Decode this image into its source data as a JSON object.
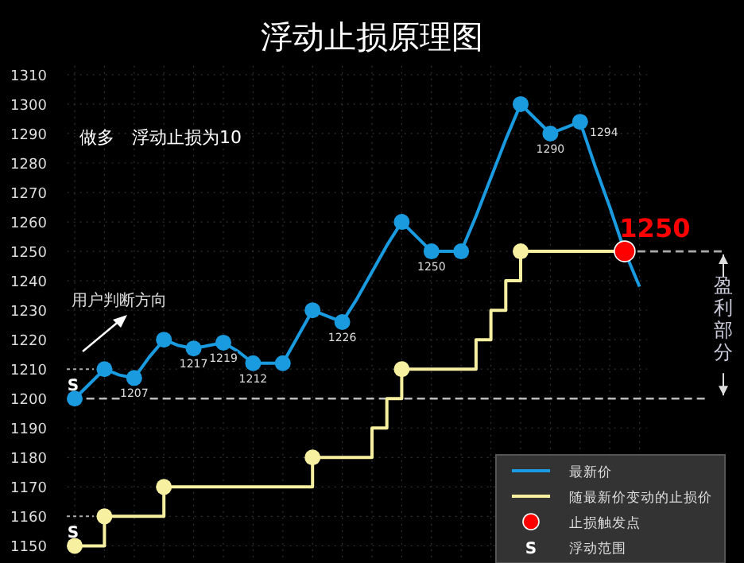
{
  "chart_data": {
    "type": "line",
    "title": "浮动止损原理图",
    "categories": [
      null,
      null,
      null,
      null,
      null,
      null,
      null,
      null,
      null,
      null,
      null,
      null,
      null,
      null,
      null,
      null,
      null,
      null,
      null,
      null,
      null,
      null,
      null,
      null,
      null,
      null,
      null,
      null,
      null,
      null,
      null,
      null,
      null,
      null,
      null,
      null,
      null,
      null,
      null
    ],
    "ylim": [
      1146,
      1313
    ],
    "yticks": [
      1150,
      1160,
      1170,
      1180,
      1190,
      1200,
      1210,
      1220,
      1230,
      1240,
      1250,
      1260,
      1270,
      1280,
      1290,
      1300,
      1310
    ],
    "tick_labels": "y",
    "grid": true,
    "legend": "bottom right",
    "series": [
      {
        "name": "最新价",
        "color": "#1a9be0",
        "values": [
          1200,
          1205,
          1210,
          1208,
          1207,
          1214,
          1220,
          1218,
          1217,
          1218,
          1219,
          1216,
          1212,
          1212,
          1212,
          1221,
          1230,
          1228,
          1226,
          1234,
          1243,
          1252,
          1260,
          1255,
          1250,
          1250,
          1250,
          1262,
          1275,
          1288,
          1300,
          1295,
          1290,
          1292,
          1294,
          1279,
          1265,
          1250,
          1238
        ]
      },
      {
        "type": "scatter",
        "color": "#1a9be0",
        "marker": "circle",
        "values": [
          1200,
          null,
          1210,
          null,
          1207,
          null,
          1220,
          null,
          1217,
          null,
          1219,
          null,
          1212,
          null,
          1212,
          null,
          1230,
          null,
          1226,
          null,
          null,
          null,
          1260,
          null,
          1250,
          null,
          1250,
          null,
          null,
          null,
          1300,
          null,
          1290,
          null,
          1294,
          null,
          null,
          null,
          null
        ],
        "value_labels": [
          null,
          null,
          null,
          null,
          "1207",
          null,
          null,
          null,
          "1217",
          null,
          "1219",
          null,
          "1212",
          null,
          null,
          null,
          null,
          null,
          "1226",
          null,
          null,
          null,
          null,
          null,
          "1250",
          null,
          null,
          null,
          null,
          null,
          null,
          null,
          "1290",
          null,
          "1294",
          null,
          null,
          null,
          null
        ]
      },
      {
        "name": "随最新价变动的止损价",
        "type": "step",
        "color": "#f7f0a0",
        "values": [
          1150,
          1150,
          1160,
          1160,
          1160,
          1160,
          1170,
          1170,
          1170,
          1170,
          1170,
          1170,
          1170,
          1170,
          1170,
          1170,
          1180,
          1180,
          1180,
          1180,
          1190,
          1200,
          1210,
          1210,
          1210,
          1210,
          1210,
          1220,
          1230,
          1240,
          1250,
          1250,
          1250,
          1250,
          1250,
          1250,
          1250,
          1250,
          null
        ]
      },
      {
        "type": "scatter",
        "color": "#f7f0a0",
        "marker": "circle",
        "values": [
          1150,
          null,
          1160,
          null,
          null,
          null,
          1170,
          null,
          null,
          null,
          null,
          null,
          null,
          null,
          null,
          null,
          1180,
          null,
          null,
          null,
          null,
          null,
          1210,
          null,
          null,
          null,
          null,
          null,
          null,
          null,
          1250,
          null,
          null,
          null,
          null,
          null,
          null,
          null,
          null
        ]
      },
      {
        "name": "止损触发点",
        "type": "scatter",
        "color": "#ff0000",
        "marker": "circle",
        "values": [
          null,
          null,
          null,
          null,
          null,
          null,
          null,
          null,
          null,
          null,
          null,
          null,
          null,
          null,
          null,
          null,
          null,
          null,
          null,
          null,
          null,
          null,
          null,
          null,
          null,
          null,
          null,
          null,
          null,
          null,
          null,
          null,
          null,
          null,
          null,
          null,
          null,
          1250,
          null
        ],
        "value_labels": [
          null,
          null,
          null,
          null,
          null,
          null,
          null,
          null,
          null,
          null,
          null,
          null,
          null,
          null,
          null,
          null,
          null,
          null,
          null,
          null,
          null,
          null,
          null,
          null,
          null,
          null,
          null,
          null,
          null,
          null,
          null,
          null,
          null,
          null,
          null,
          null,
          null,
          "1250",
          null
        ]
      }
    ],
    "ref_lines": [
      {
        "axis": "y",
        "value": 1200,
        "color": "#bbbbbb",
        "line_style": "dashed"
      }
    ],
    "annotations": [
      "做多　浮动止损为10",
      "用户判断方向",
      {
        "text": "S",
        "y": 1205
      },
      {
        "text": "S",
        "y": 1155
      },
      "盈利部分",
      "浮动范围"
    ]
  }
}
